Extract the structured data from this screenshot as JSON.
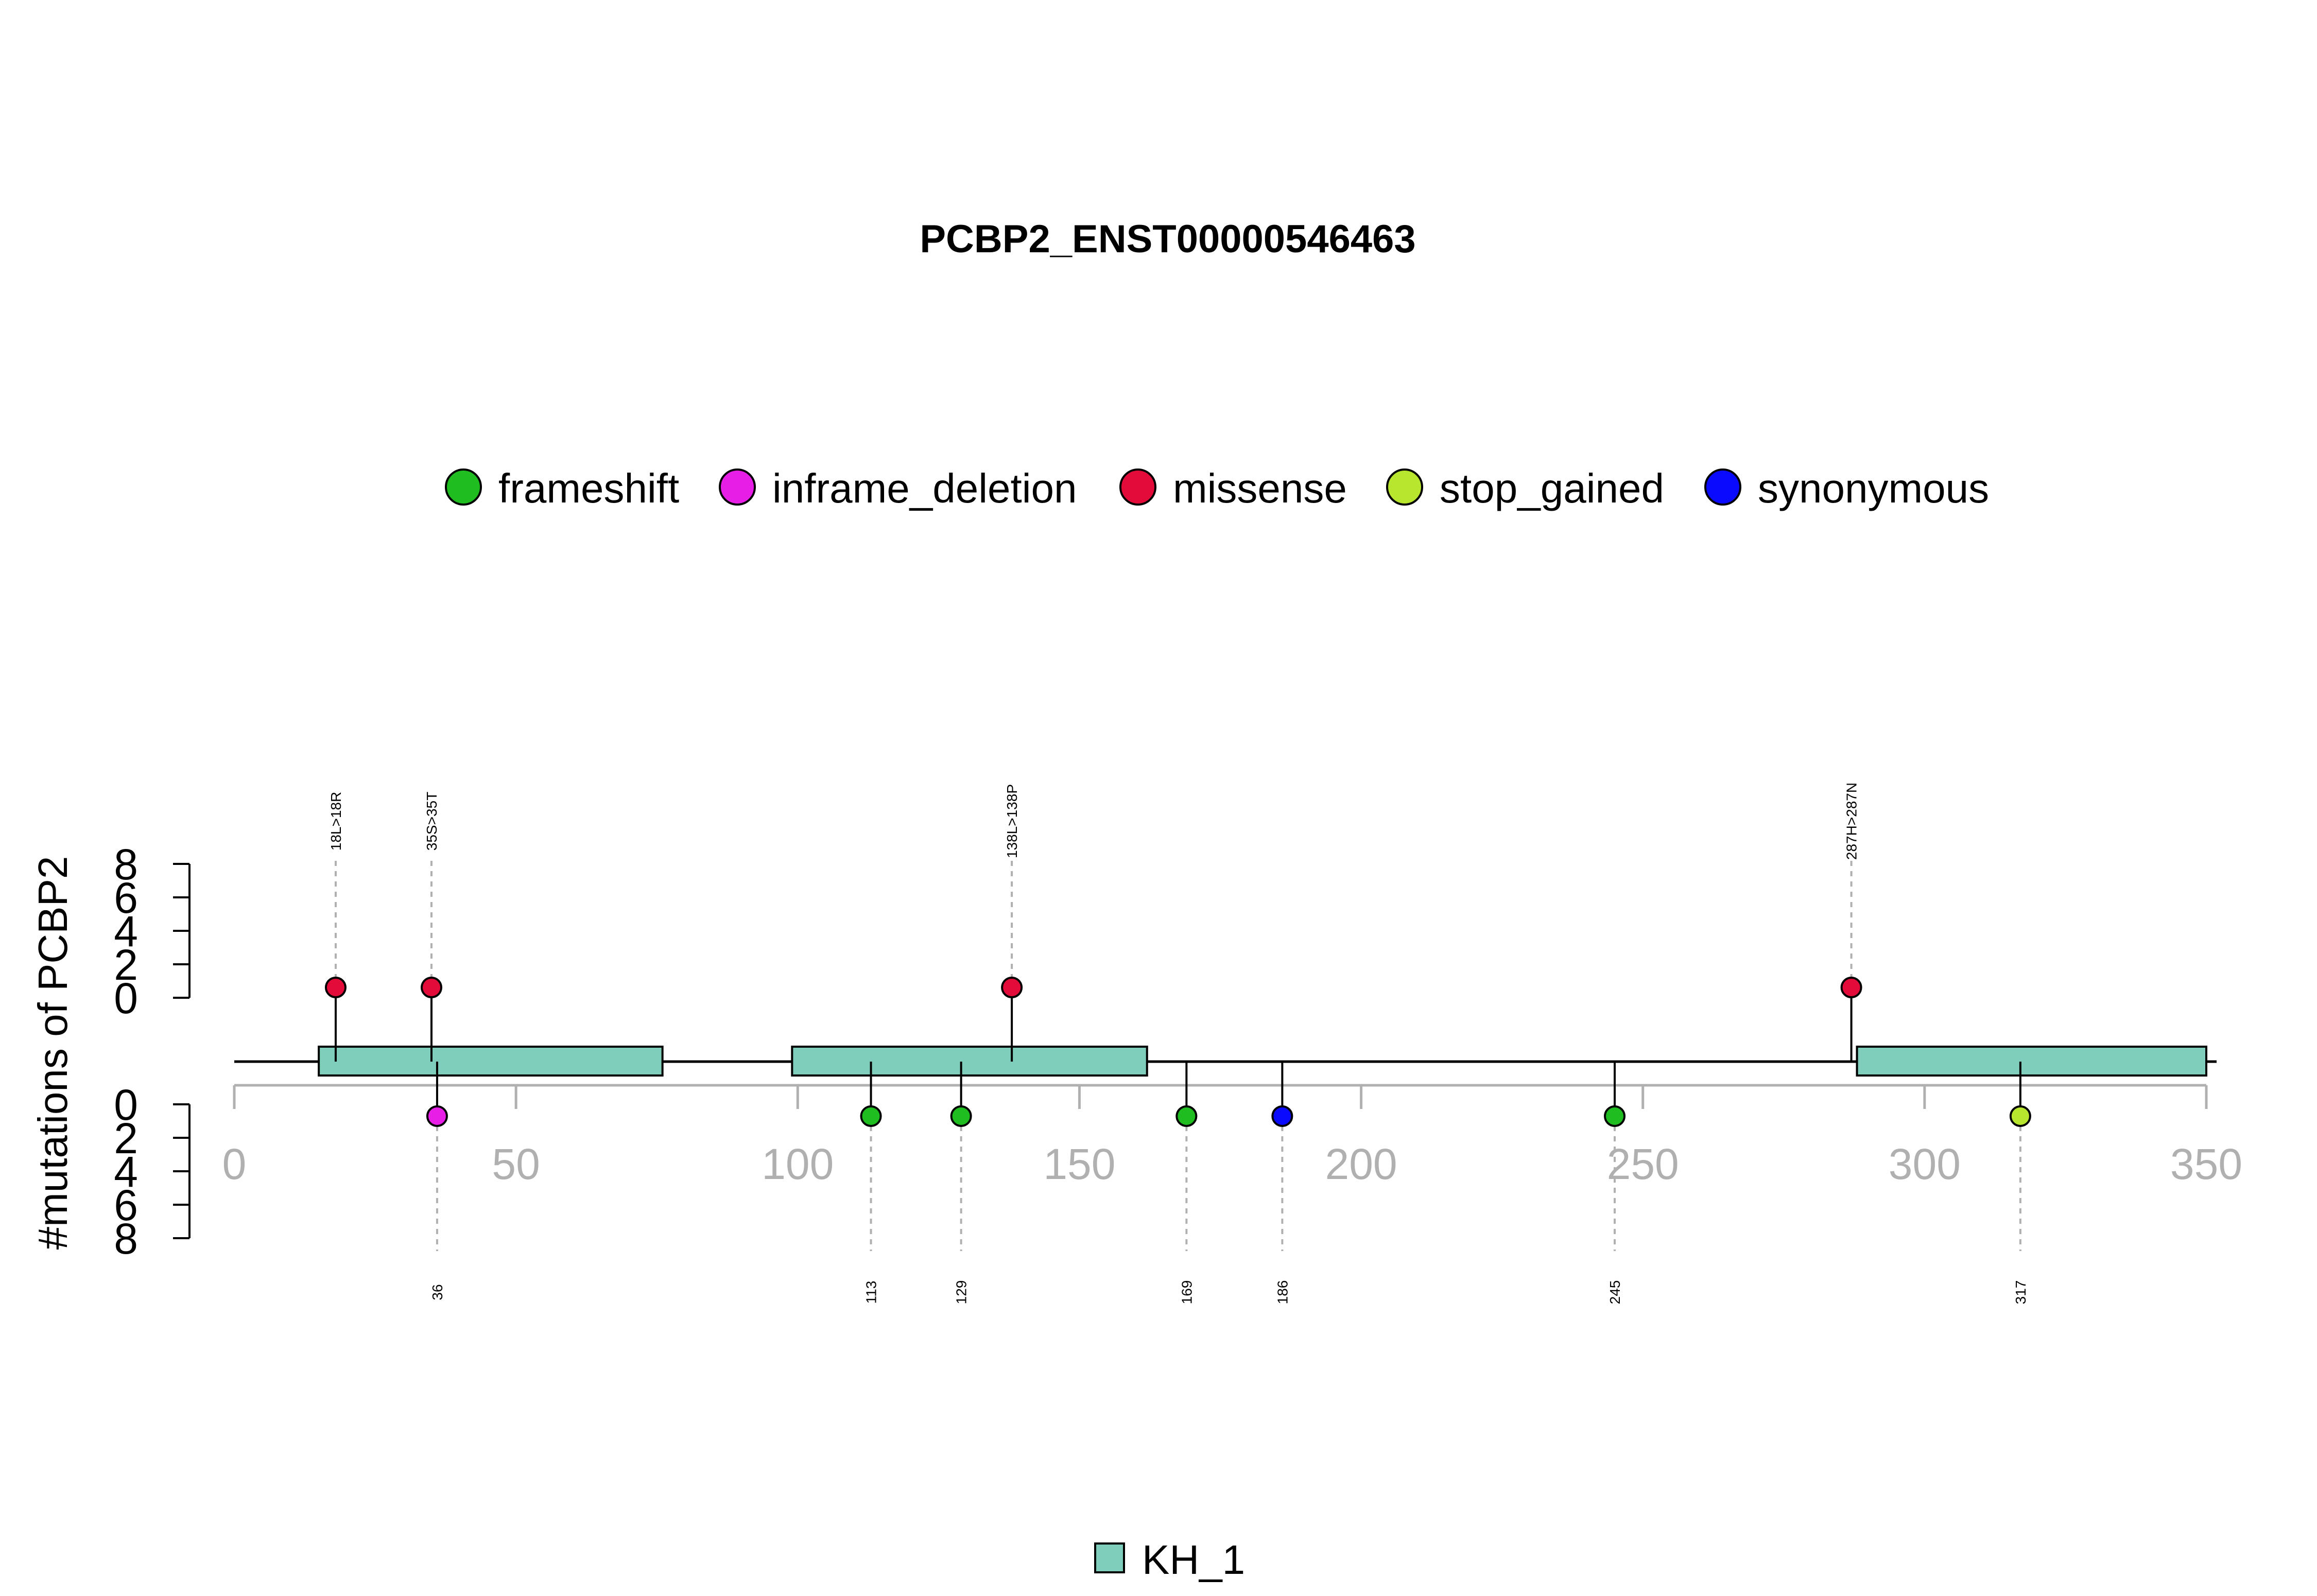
{
  "chart_data": {
    "type": "lollipop",
    "title": "PCBP2_ENST00000546463",
    "ylabel": "#mutations of PCBP2",
    "xlim": [
      0,
      350
    ],
    "xticks": [
      0,
      50,
      100,
      150,
      200,
      250,
      300,
      350
    ],
    "ylim_top": [
      0,
      8
    ],
    "ylim_bottom": [
      0,
      8
    ],
    "yticks": [
      0,
      2,
      4,
      6,
      8
    ],
    "protein_length": 350,
    "mutation_types": [
      {
        "name": "frameshift",
        "color": "#1fbd1f"
      },
      {
        "name": "inframe_deletion",
        "color": "#e61ee6"
      },
      {
        "name": "missense",
        "color": "#e30b3a"
      },
      {
        "name": "stop_gained",
        "color": "#b8e62e"
      },
      {
        "name": "synonymous",
        "color": "#0a0aff"
      }
    ],
    "domains": [
      {
        "name": "KH_1",
        "color": "#7fcdbb",
        "start": 15,
        "end": 76
      },
      {
        "name": "KH_1",
        "color": "#7fcdbb",
        "start": 99,
        "end": 162
      },
      {
        "name": "KH_1",
        "color": "#7fcdbb",
        "start": 288,
        "end": 350
      }
    ],
    "domain_legend": [
      {
        "name": "KH_1",
        "color": "#7fcdbb"
      }
    ],
    "mutations_top": [
      {
        "position": 18,
        "count": 1,
        "type": "missense",
        "label": "18L>18R"
      },
      {
        "position": 35,
        "count": 1,
        "type": "missense",
        "label": "35S>35T"
      },
      {
        "position": 138,
        "count": 1,
        "type": "missense",
        "label": "138L>138P"
      },
      {
        "position": 287,
        "count": 1,
        "type": "missense",
        "label": "287H>287N"
      }
    ],
    "mutations_bottom": [
      {
        "position": 36,
        "count": 1,
        "type": "inframe_deletion",
        "label": "36"
      },
      {
        "position": 113,
        "count": 1,
        "type": "frameshift",
        "label": "113"
      },
      {
        "position": 129,
        "count": 1,
        "type": "frameshift",
        "label": "129"
      },
      {
        "position": 169,
        "count": 1,
        "type": "frameshift",
        "label": "169"
      },
      {
        "position": 186,
        "count": 1,
        "type": "synonymous",
        "label": "186"
      },
      {
        "position": 245,
        "count": 1,
        "type": "frameshift",
        "label": "245"
      },
      {
        "position": 317,
        "count": 1,
        "type": "stop_gained",
        "label": "317"
      }
    ]
  }
}
